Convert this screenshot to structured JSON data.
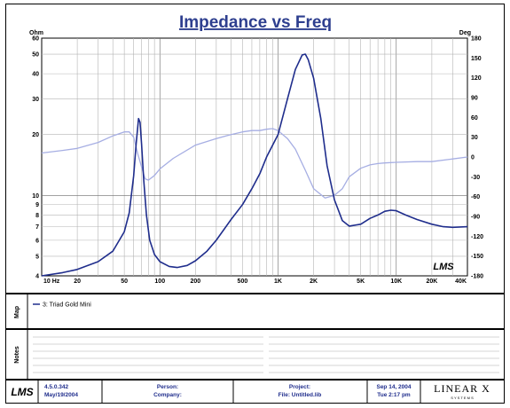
{
  "chart_data": {
    "type": "line",
    "title": "Impedance vs Freq",
    "y_left_unit": "Ohm",
    "y_right_unit": "Deg",
    "x_scale": "log",
    "y_left_scale": "log",
    "xlim": [
      10,
      40000
    ],
    "ylim_left": [
      4,
      60
    ],
    "ylim_right": [
      -180,
      180
    ],
    "x_ticks": [
      {
        "label": "10 Hz",
        "value": 10
      },
      {
        "label": "20",
        "value": 20
      },
      {
        "label": "50",
        "value": 50
      },
      {
        "label": "100",
        "value": 100
      },
      {
        "label": "200",
        "value": 200
      },
      {
        "label": "500",
        "value": 500
      },
      {
        "label": "1K",
        "value": 1000
      },
      {
        "label": "2K",
        "value": 2000
      },
      {
        "label": "5K",
        "value": 5000
      },
      {
        "label": "10K",
        "value": 10000
      },
      {
        "label": "20K",
        "value": 20000
      },
      {
        "label": "40K",
        "value": 40000
      }
    ],
    "y_left_ticks": [
      {
        "label": "60",
        "value": 60
      },
      {
        "label": "50",
        "value": 50
      },
      {
        "label": "40",
        "value": 40
      },
      {
        "label": "30",
        "value": 30
      },
      {
        "label": "20",
        "value": 20
      },
      {
        "label": "10",
        "value": 10
      },
      {
        "label": "9",
        "value": 9
      },
      {
        "label": "8",
        "value": 8
      },
      {
        "label": "7",
        "value": 7
      },
      {
        "label": "6",
        "value": 6
      },
      {
        "label": "5",
        "value": 5
      },
      {
        "label": "4",
        "value": 4
      }
    ],
    "y_right_ticks": [
      "180",
      "150",
      "120",
      "90",
      "60",
      "30",
      "0",
      "-30",
      "-60",
      "-90",
      "-120",
      "-150",
      "-180"
    ],
    "grid": true,
    "series": [
      {
        "name": "3: Triad Gold Mini",
        "axis": "left",
        "color": "#1f2d8c",
        "points": [
          [
            10,
            4.0
          ],
          [
            15,
            4.15
          ],
          [
            20,
            4.3
          ],
          [
            30,
            4.7
          ],
          [
            40,
            5.3
          ],
          [
            50,
            6.6
          ],
          [
            55,
            8.2
          ],
          [
            60,
            12.5
          ],
          [
            63,
            18
          ],
          [
            66,
            24
          ],
          [
            68,
            23
          ],
          [
            70,
            18
          ],
          [
            73,
            12
          ],
          [
            77,
            8
          ],
          [
            82,
            6
          ],
          [
            90,
            5.1
          ],
          [
            100,
            4.7
          ],
          [
            120,
            4.45
          ],
          [
            140,
            4.4
          ],
          [
            170,
            4.5
          ],
          [
            200,
            4.75
          ],
          [
            250,
            5.3
          ],
          [
            300,
            6.0
          ],
          [
            400,
            7.6
          ],
          [
            500,
            9.0
          ],
          [
            600,
            10.8
          ],
          [
            700,
            12.8
          ],
          [
            800,
            15.5
          ],
          [
            1000,
            20
          ],
          [
            1200,
            30
          ],
          [
            1400,
            42
          ],
          [
            1600,
            49.5
          ],
          [
            1700,
            50
          ],
          [
            1800,
            47
          ],
          [
            2000,
            38
          ],
          [
            2300,
            24
          ],
          [
            2600,
            14
          ],
          [
            3000,
            9.5
          ],
          [
            3500,
            7.5
          ],
          [
            4000,
            7.05
          ],
          [
            5000,
            7.2
          ],
          [
            6000,
            7.7
          ],
          [
            7000,
            8.0
          ],
          [
            8000,
            8.35
          ],
          [
            9000,
            8.45
          ],
          [
            10000,
            8.4
          ],
          [
            12000,
            8.0
          ],
          [
            15000,
            7.6
          ],
          [
            20000,
            7.2
          ],
          [
            25000,
            7.0
          ],
          [
            30000,
            6.95
          ],
          [
            40000,
            7.0
          ]
        ]
      },
      {
        "name": "",
        "axis": "right",
        "color": "#a6aee3",
        "points": [
          [
            10,
            6
          ],
          [
            15,
            10
          ],
          [
            20,
            13
          ],
          [
            30,
            22
          ],
          [
            40,
            32
          ],
          [
            50,
            38
          ],
          [
            55,
            38
          ],
          [
            60,
            30
          ],
          [
            65,
            5
          ],
          [
            70,
            -15
          ],
          [
            75,
            -33
          ],
          [
            80,
            -35
          ],
          [
            90,
            -28
          ],
          [
            100,
            -18
          ],
          [
            130,
            -2
          ],
          [
            200,
            18
          ],
          [
            300,
            28
          ],
          [
            400,
            34
          ],
          [
            500,
            38
          ],
          [
            600,
            40
          ],
          [
            700,
            40
          ],
          [
            800,
            42
          ],
          [
            900,
            43
          ],
          [
            1000,
            40
          ],
          [
            1200,
            28
          ],
          [
            1400,
            12
          ],
          [
            1700,
            -20
          ],
          [
            2000,
            -48
          ],
          [
            2500,
            -62
          ],
          [
            3000,
            -58
          ],
          [
            3500,
            -48
          ],
          [
            4000,
            -30
          ],
          [
            5000,
            -17
          ],
          [
            6000,
            -12
          ],
          [
            7000,
            -10
          ],
          [
            8000,
            -9
          ],
          [
            10000,
            -8
          ],
          [
            15000,
            -7
          ],
          [
            20000,
            -7
          ],
          [
            30000,
            -3
          ],
          [
            40000,
            0
          ]
        ]
      }
    ],
    "legend": {
      "placement": "map-panel",
      "entries": [
        "3: Triad Gold Mini"
      ]
    }
  },
  "panels": {
    "map_label": "Map",
    "notes_label": "Notes"
  },
  "watermark": "LMS",
  "footer": {
    "logo": "LMS",
    "version": "4.5.0.342",
    "version_date": "May/19/2004",
    "person_label": "Person:",
    "company_label": "Company:",
    "project_label": "Project:",
    "file_label": "File: Untitled.lib",
    "date": "Sep 14, 2004",
    "time": "Tue  2:17 pm",
    "brand": "LINEAR X",
    "brand_sub": "S Y S T E M S"
  },
  "colors": {
    "impedance": "#1f2d8c",
    "phase": "#a6aee3",
    "title": "#2e3f8f"
  }
}
